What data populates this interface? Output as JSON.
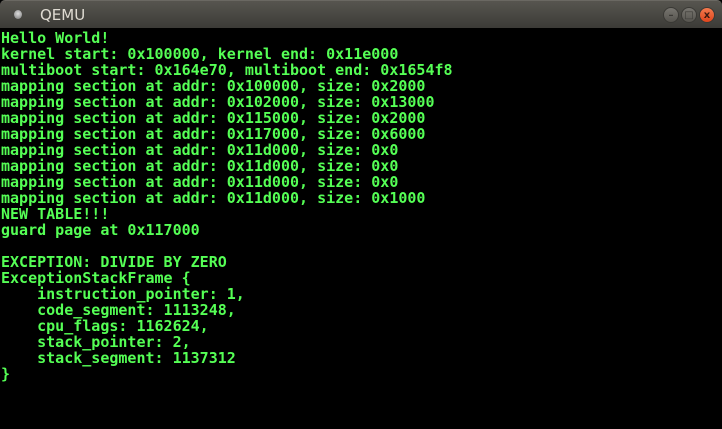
{
  "window": {
    "title": "QEMU",
    "buttons": {
      "minimize": "–",
      "maximize": "□",
      "close": "x"
    },
    "colors": {
      "terminal_text": "#55ff55",
      "terminal_bg": "#000000",
      "close_button": "#e8532a"
    }
  },
  "terminal": {
    "lines": [
      "Hello World!",
      "kernel start: 0x100000, kernel end: 0x11e000",
      "multiboot start: 0x164e70, multiboot end: 0x1654f8",
      "mapping section at addr: 0x100000, size: 0x2000",
      "mapping section at addr: 0x102000, size: 0x13000",
      "mapping section at addr: 0x115000, size: 0x2000",
      "mapping section at addr: 0x117000, size: 0x6000",
      "mapping section at addr: 0x11d000, size: 0x0",
      "mapping section at addr: 0x11d000, size: 0x0",
      "mapping section at addr: 0x11d000, size: 0x0",
      "mapping section at addr: 0x11d000, size: 0x1000",
      "NEW TABLE!!!",
      "guard page at 0x117000",
      "",
      "EXCEPTION: DIVIDE BY ZERO",
      "ExceptionStackFrame {",
      "    instruction_pointer: 1,",
      "    code_segment: 1113248,",
      "    cpu_flags: 1162624,",
      "    stack_pointer: 2,",
      "    stack_segment: 1137312",
      "}"
    ]
  }
}
